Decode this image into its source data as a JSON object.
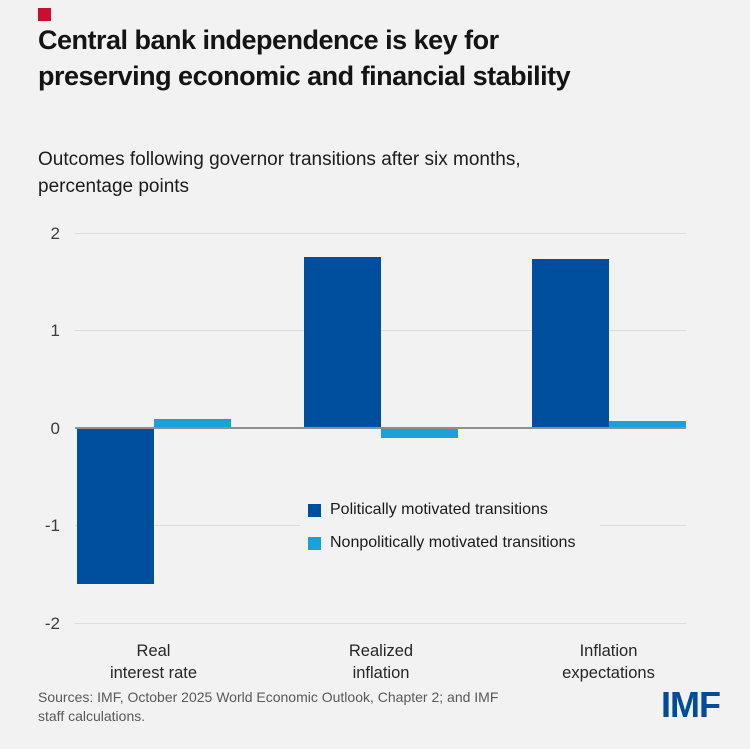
{
  "page": {
    "background_color": "#f2f2f3"
  },
  "brand": {
    "red_square_color": "#c8102e"
  },
  "header": {
    "title_line1": "Central bank independence is key for",
    "title_line2": "preserving economic and financial stability",
    "subtitle_line1": "Outcomes following governor transitions after six months,",
    "subtitle_line2": "percentage points"
  },
  "chart_data": {
    "type": "bar",
    "categories": [
      "Real interest rate",
      "Realized inflation",
      "Inflation expectations"
    ],
    "category_lines": [
      [
        "Real",
        "interest rate"
      ],
      [
        "Realized",
        "inflation"
      ],
      [
        "Inflation",
        "expectations"
      ]
    ],
    "series": [
      {
        "name": "Politically motivated transitions",
        "color": "#004f9e",
        "values": [
          -1.59,
          1.74,
          1.72
        ]
      },
      {
        "name": "Nonpolitically motivated transitions",
        "color": "#1ba1da",
        "values": [
          0.08,
          -0.09,
          0.06
        ]
      }
    ],
    "title": "Central bank independence is key for preserving economic and financial stability",
    "subtitle": "Outcomes following governor transitions after six months, percentage points",
    "xlabel": "",
    "ylabel": "",
    "ylim": [
      -2,
      2
    ],
    "yticks": [
      2,
      1,
      0,
      -1,
      -2
    ],
    "ytick_labels": [
      "2",
      "1",
      "0",
      "-1",
      "-2"
    ],
    "grid": "horizontal",
    "legend_position": "inside-lower-middle",
    "gridline_color": "#dcdcde",
    "zero_line_color": "#8f8f8f"
  },
  "footer": {
    "source_line1": "Sources: IMF, October 2025 World Economic Outlook, Chapter 2; and IMF",
    "source_line2": "staff calculations.",
    "logo": "IMF",
    "logo_color": "#004c97"
  }
}
